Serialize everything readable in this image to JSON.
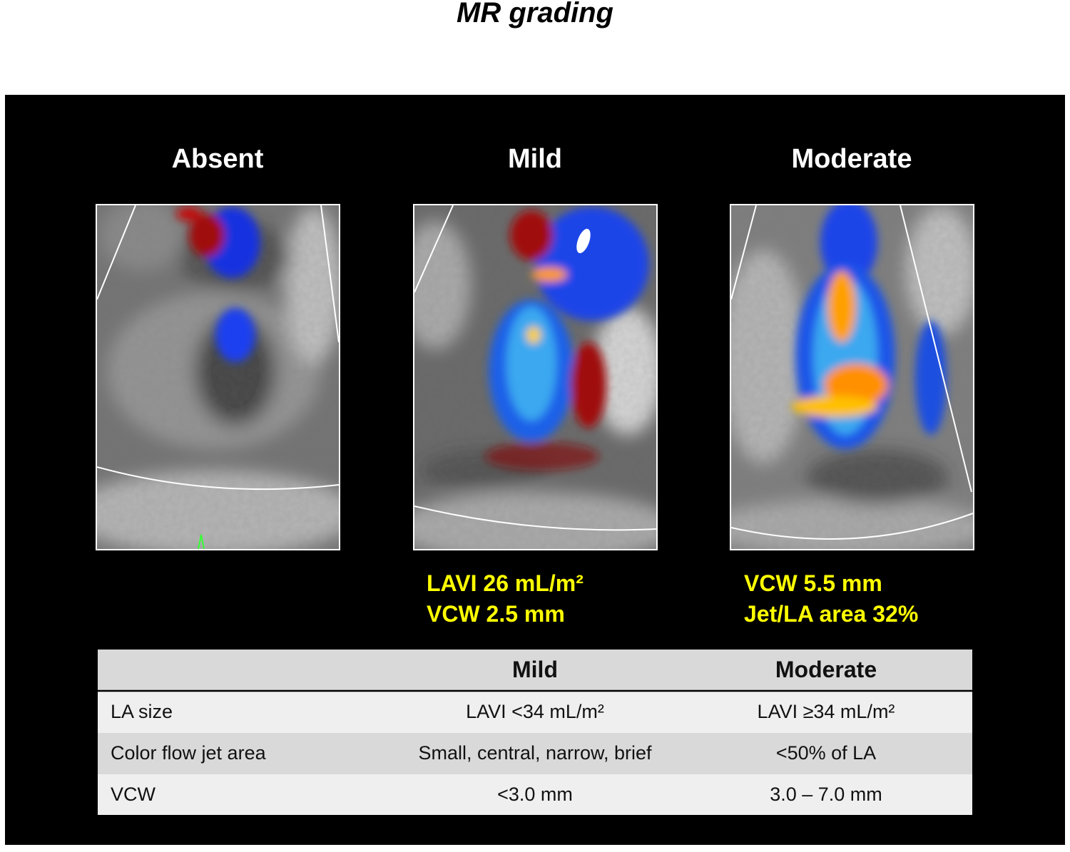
{
  "title": "MR grading",
  "panels": [
    {
      "label": "Absent"
    },
    {
      "label": "Mild",
      "captions": [
        "LAVI 26 mL/m²",
        "VCW 2.5 mm"
      ]
    },
    {
      "label": "Moderate",
      "captions": [
        "VCW 5.5 mm",
        "Jet/LA area 32%"
      ]
    }
  ],
  "table": {
    "columns": [
      "Mild",
      "Moderate"
    ],
    "rows": [
      [
        "LA size",
        "LAVI <34 mL/m²",
        "LAVI ≥34 mL/m²"
      ],
      [
        "Color flow jet area",
        "Small, central, narrow, brief",
        "<50% of LA"
      ],
      [
        "VCW",
        "<3.0 mm",
        "3.0 – 7.0 mm"
      ]
    ]
  }
}
